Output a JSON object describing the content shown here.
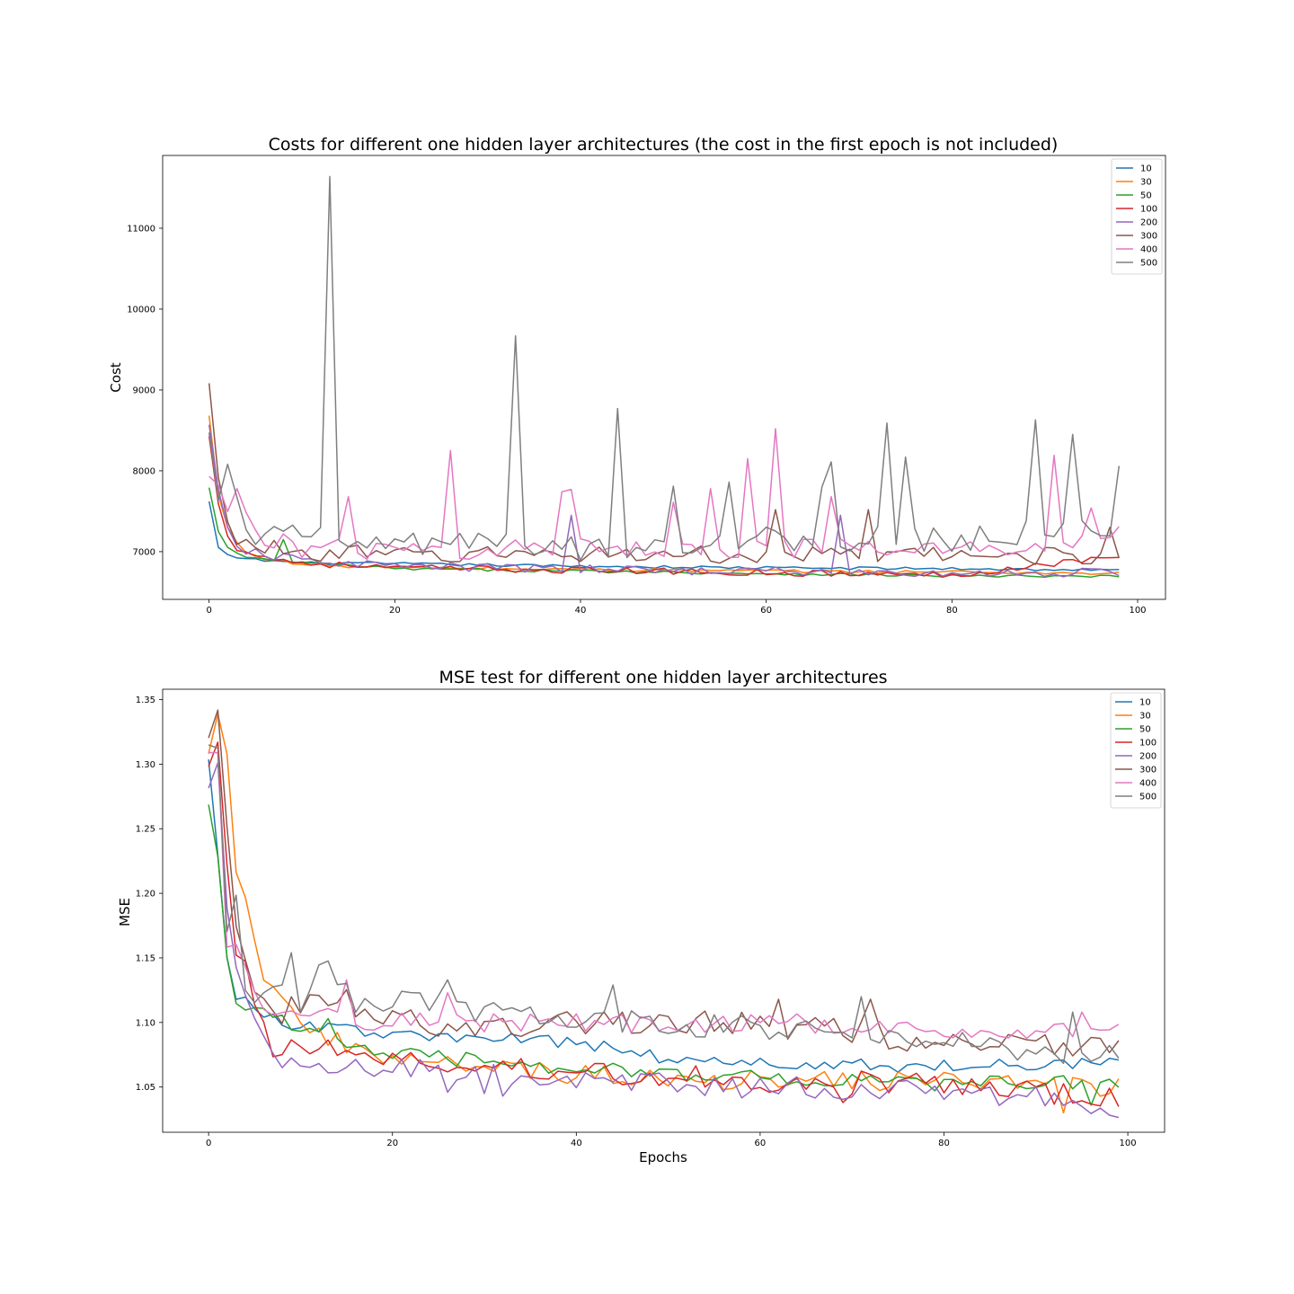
{
  "chart_data": [
    {
      "type": "line",
      "title": "Costs for different one hidden layer architectures (the cost in the first epoch is not included)",
      "xlabel": "",
      "ylabel": "Cost",
      "xlim": [
        -5,
        103
      ],
      "ylim": [
        6410,
        11900
      ],
      "xticks": [
        0,
        20,
        40,
        60,
        80,
        100
      ],
      "yticks": [
        7000,
        8000,
        9000,
        10000,
        11000
      ],
      "grid": false,
      "legend_position": "top-right",
      "n_points": 99,
      "series": [
        {
          "name": "10",
          "color": "#1f77b4",
          "anchors": [
            [
              0,
              7620
            ],
            [
              1,
              7050
            ],
            [
              2,
              6960
            ],
            [
              3,
              6930
            ],
            [
              5,
              6900
            ],
            [
              10,
              6860
            ],
            [
              20,
              6850
            ],
            [
              40,
              6820
            ],
            [
              60,
              6800
            ],
            [
              80,
              6790
            ],
            [
              98,
              6770
            ]
          ],
          "spikes": [],
          "noise": 18
        },
        {
          "name": "30",
          "color": "#ff7f0e",
          "anchors": [
            [
              0,
              8680
            ],
            [
              1,
              7700
            ],
            [
              2,
              7300
            ],
            [
              3,
              7100
            ],
            [
              4,
              7000
            ],
            [
              6,
              6920
            ],
            [
              10,
              6840
            ],
            [
              20,
              6800
            ],
            [
              40,
              6780
            ],
            [
              60,
              6760
            ],
            [
              80,
              6750
            ],
            [
              98,
              6730
            ]
          ],
          "spikes": [],
          "noise": 20
        },
        {
          "name": "50",
          "color": "#2ca02c",
          "anchors": [
            [
              0,
              7790
            ],
            [
              1,
              7250
            ],
            [
              2,
              7050
            ],
            [
              4,
              6920
            ],
            [
              8,
              6880
            ],
            [
              20,
              6790
            ],
            [
              40,
              6760
            ],
            [
              60,
              6730
            ],
            [
              80,
              6700
            ],
            [
              98,
              6690
            ]
          ],
          "spikes": [
            [
              8,
              7150
            ]
          ],
          "noise": 18
        },
        {
          "name": "100",
          "color": "#d62728",
          "anchors": [
            [
              0,
              8420
            ],
            [
              1,
              7600
            ],
            [
              2,
              7200
            ],
            [
              3,
              7050
            ],
            [
              5,
              6950
            ],
            [
              10,
              6860
            ],
            [
              20,
              6800
            ],
            [
              40,
              6770
            ],
            [
              60,
              6740
            ],
            [
              80,
              6710
            ],
            [
              98,
              6950
            ]
          ],
          "spikes": [],
          "noise": 40
        },
        {
          "name": "200",
          "color": "#9467bd",
          "anchors": [
            [
              0,
              8560
            ],
            [
              1,
              7750
            ],
            [
              2,
              7300
            ],
            [
              3,
              7050
            ],
            [
              6,
              6950
            ],
            [
              10,
              6900
            ],
            [
              20,
              6820
            ],
            [
              40,
              6780
            ],
            [
              60,
              6760
            ],
            [
              80,
              6720
            ],
            [
              98,
              6750
            ]
          ],
          "spikes": [
            [
              39,
              7450
            ],
            [
              68,
              7450
            ]
          ],
          "noise": 55
        },
        {
          "name": "300",
          "color": "#8c564b",
          "anchors": [
            [
              0,
              9060
            ],
            [
              1,
              7900
            ],
            [
              2,
              7400
            ],
            [
              3,
              7150
            ],
            [
              5,
              7050
            ],
            [
              10,
              7000
            ],
            [
              20,
              6950
            ],
            [
              40,
              6980
            ],
            [
              60,
              6950
            ],
            [
              80,
              6950
            ],
            [
              98,
              6950
            ]
          ],
          "spikes": [
            [
              61,
              7520
            ],
            [
              71,
              7520
            ],
            [
              97,
              7300
            ]
          ],
          "noise": 110
        },
        {
          "name": "400",
          "color": "#e377c2",
          "anchors": [
            [
              0,
              7900
            ],
            [
              1,
              7820
            ],
            [
              2,
              7500
            ],
            [
              4,
              7400
            ],
            [
              6,
              7200
            ],
            [
              10,
              7050
            ],
            [
              20,
              7000
            ],
            [
              40,
              7050
            ],
            [
              60,
              7050
            ],
            [
              80,
              7000
            ],
            [
              98,
              7200
            ]
          ],
          "spikes": [
            [
              3,
              7780
            ],
            [
              15,
              7680
            ],
            [
              26,
              8250
            ],
            [
              38,
              7740
            ],
            [
              39,
              7770
            ],
            [
              50,
              7610
            ],
            [
              54,
              7780
            ],
            [
              58,
              8150
            ],
            [
              61,
              8520
            ],
            [
              67,
              7680
            ],
            [
              89,
              7100
            ],
            [
              91,
              8190
            ],
            [
              95,
              7540
            ]
          ],
          "noise": 130
        },
        {
          "name": "500",
          "color": "#7f7f7f",
          "anchors": [
            [
              0,
              8430
            ],
            [
              1,
              7650
            ],
            [
              2,
              7800
            ],
            [
              4,
              7300
            ],
            [
              6,
              7200
            ],
            [
              10,
              7150
            ],
            [
              20,
              7100
            ],
            [
              40,
              7050
            ],
            [
              60,
              7150
            ],
            [
              80,
              7150
            ],
            [
              98,
              7300
            ]
          ],
          "spikes": [
            [
              2,
              8080
            ],
            [
              13,
              11640
            ],
            [
              33,
              9670
            ],
            [
              44,
              8770
            ],
            [
              50,
              7810
            ],
            [
              56,
              7860
            ],
            [
              66,
              7800
            ],
            [
              67,
              8110
            ],
            [
              73,
              8590
            ],
            [
              75,
              8170
            ],
            [
              89,
              8630
            ],
            [
              93,
              8450
            ],
            [
              98,
              8060
            ]
          ],
          "noise": 170
        }
      ]
    },
    {
      "type": "line",
      "title": "MSE test for different one hidden layer architectures",
      "xlabel": "Epochs",
      "ylabel": "MSE",
      "xlim": [
        -5,
        104
      ],
      "ylim": [
        1.015,
        1.358
      ],
      "xticks": [
        0,
        20,
        40,
        60,
        80,
        100
      ],
      "yticks": [
        1.05,
        1.1,
        1.15,
        1.2,
        1.25,
        1.3,
        1.35
      ],
      "grid": false,
      "legend_position": "top-right",
      "n_points": 100,
      "series": [
        {
          "name": "10",
          "color": "#1f77b4",
          "anchors": [
            [
              0,
              1.305
            ],
            [
              1,
              1.23
            ],
            [
              2,
              1.15
            ],
            [
              3,
              1.12
            ],
            [
              5,
              1.11
            ],
            [
              8,
              1.1
            ],
            [
              20,
              1.09
            ],
            [
              40,
              1.085
            ],
            [
              50,
              1.072
            ],
            [
              60,
              1.068
            ],
            [
              80,
              1.066
            ],
            [
              99,
              1.07
            ]
          ],
          "spikes": [],
          "noise": 0.005
        },
        {
          "name": "30",
          "color": "#ff7f0e",
          "anchors": [
            [
              0,
              1.31
            ],
            [
              1,
              1.34
            ],
            [
              2,
              1.31
            ],
            [
              3,
              1.21
            ],
            [
              4,
              1.195
            ],
            [
              5,
              1.17
            ],
            [
              6,
              1.14
            ],
            [
              7,
              1.125
            ],
            [
              9,
              1.11
            ],
            [
              12,
              1.09
            ],
            [
              20,
              1.07
            ],
            [
              40,
              1.06
            ],
            [
              60,
              1.055
            ],
            [
              80,
              1.055
            ],
            [
              99,
              1.05
            ]
          ],
          "spikes": [
            [
              93,
              1.03
            ]
          ],
          "noise": 0.008
        },
        {
          "name": "50",
          "color": "#2ca02c",
          "anchors": [
            [
              0,
              1.27
            ],
            [
              1,
              1.23
            ],
            [
              2,
              1.15
            ],
            [
              3,
              1.115
            ],
            [
              5,
              1.11
            ],
            [
              8,
              1.1
            ],
            [
              20,
              1.075
            ],
            [
              40,
              1.065
            ],
            [
              60,
              1.057
            ],
            [
              80,
              1.052
            ],
            [
              99,
              1.055
            ]
          ],
          "spikes": [
            [
              13,
              1.103
            ],
            [
              96,
              1.036
            ]
          ],
          "noise": 0.006
        },
        {
          "name": "100",
          "color": "#d62728",
          "anchors": [
            [
              0,
              1.3
            ],
            [
              1,
              1.315
            ],
            [
              2,
              1.22
            ],
            [
              3,
              1.16
            ],
            [
              5,
              1.12
            ],
            [
              7,
              1.075
            ],
            [
              10,
              1.085
            ],
            [
              20,
              1.07
            ],
            [
              40,
              1.062
            ],
            [
              60,
              1.055
            ],
            [
              80,
              1.052
            ],
            [
              99,
              1.04
            ]
          ],
          "spikes": [
            [
              69,
              1.038
            ]
          ],
          "noise": 0.009
        },
        {
          "name": "200",
          "color": "#9467bd",
          "anchors": [
            [
              0,
              1.283
            ],
            [
              1,
              1.3
            ],
            [
              2,
              1.19
            ],
            [
              3,
              1.14
            ],
            [
              5,
              1.1
            ],
            [
              8,
              1.07
            ],
            [
              20,
              1.065
            ],
            [
              40,
              1.055
            ],
            [
              60,
              1.05
            ],
            [
              80,
              1.048
            ],
            [
              99,
              1.035
            ]
          ],
          "spikes": [
            [
              8,
              1.065
            ],
            [
              26,
              1.046
            ],
            [
              30,
              1.045
            ],
            [
              32,
              1.043
            ]
          ],
          "noise": 0.009
        },
        {
          "name": "300",
          "color": "#8c564b",
          "anchors": [
            [
              0,
              1.322
            ],
            [
              1,
              1.342
            ],
            [
              2,
              1.25
            ],
            [
              3,
              1.18
            ],
            [
              5,
              1.13
            ],
            [
              8,
              1.11
            ],
            [
              15,
              1.115
            ],
            [
              20,
              1.1
            ],
            [
              40,
              1.1
            ],
            [
              60,
              1.1
            ],
            [
              80,
              1.085
            ],
            [
              99,
              1.08
            ]
          ],
          "spikes": [
            [
              62,
              1.118
            ],
            [
              72,
              1.118
            ]
          ],
          "noise": 0.011
        },
        {
          "name": "400",
          "color": "#e377c2",
          "anchors": [
            [
              0,
              1.31
            ],
            [
              1,
              1.31
            ],
            [
              2,
              1.16
            ],
            [
              3,
              1.155
            ],
            [
              5,
              1.12
            ],
            [
              8,
              1.11
            ],
            [
              20,
              1.1
            ],
            [
              40,
              1.1
            ],
            [
              60,
              1.1
            ],
            [
              80,
              1.095
            ],
            [
              99,
              1.092
            ]
          ],
          "spikes": [
            [
              15,
              1.133
            ],
            [
              26,
              1.123
            ],
            [
              95,
              1.108
            ]
          ],
          "noise": 0.008
        },
        {
          "name": "500",
          "color": "#7f7f7f",
          "anchors": [
            [
              0,
              1.316
            ],
            [
              1,
              1.315
            ],
            [
              2,
              1.17
            ],
            [
              3,
              1.2
            ],
            [
              4,
              1.125
            ],
            [
              6,
              1.115
            ],
            [
              8,
              1.125
            ],
            [
              10,
              1.117
            ],
            [
              13,
              1.15
            ],
            [
              16,
              1.11
            ],
            [
              20,
              1.115
            ],
            [
              40,
              1.105
            ],
            [
              60,
              1.095
            ],
            [
              80,
              1.085
            ],
            [
              99,
              1.075
            ]
          ],
          "spikes": [
            [
              9,
              1.154
            ],
            [
              26,
              1.133
            ],
            [
              44,
              1.129
            ],
            [
              71,
              1.12
            ],
            [
              94,
              1.108
            ]
          ],
          "noise": 0.01
        }
      ]
    }
  ]
}
